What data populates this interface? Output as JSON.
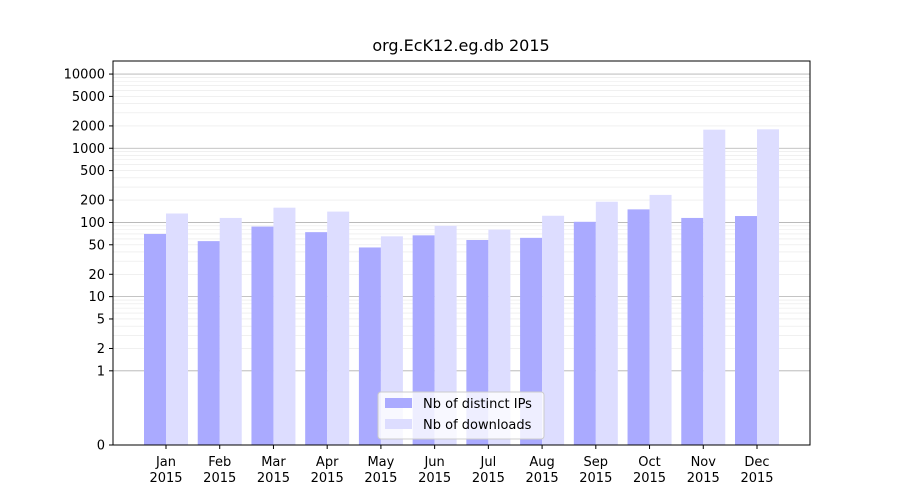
{
  "chart_data": {
    "type": "bar",
    "title": "org.EcK12.eg.db 2015",
    "xlabel": "",
    "ylabel": "",
    "y_scale": "symlog",
    "ylim": [
      0,
      15000
    ],
    "grid": true,
    "legend_position": "bottom-center",
    "categories": [
      [
        "Jan",
        "2015"
      ],
      [
        "Feb",
        "2015"
      ],
      [
        "Mar",
        "2015"
      ],
      [
        "Apr",
        "2015"
      ],
      [
        "May",
        "2015"
      ],
      [
        "Jun",
        "2015"
      ],
      [
        "Jul",
        "2015"
      ],
      [
        "Aug",
        "2015"
      ],
      [
        "Sep",
        "2015"
      ],
      [
        "Oct",
        "2015"
      ],
      [
        "Nov",
        "2015"
      ],
      [
        "Dec",
        "2015"
      ]
    ],
    "y_ticks": [
      {
        "value": 0,
        "label": "0"
      },
      {
        "value": 1,
        "label": "1"
      },
      {
        "value": 2,
        "label": "2"
      },
      {
        "value": 5,
        "label": "5"
      },
      {
        "value": 10,
        "label": "10"
      },
      {
        "value": 20,
        "label": "20"
      },
      {
        "value": 50,
        "label": "50"
      },
      {
        "value": 100,
        "label": "100"
      },
      {
        "value": 200,
        "label": "200"
      },
      {
        "value": 500,
        "label": "500"
      },
      {
        "value": 1000,
        "label": "1000"
      },
      {
        "value": 2000,
        "label": "2000"
      },
      {
        "value": 5000,
        "label": "5000"
      },
      {
        "value": 10000,
        "label": "10000"
      }
    ],
    "series": [
      {
        "name": "Nb of distinct IPs",
        "color": "#aaaaff",
        "values": [
          70,
          56,
          88,
          74,
          46,
          67,
          58,
          62,
          102,
          150,
          115,
          122
        ]
      },
      {
        "name": "Nb of downloads",
        "color": "#ddddff",
        "values": [
          132,
          115,
          158,
          140,
          65,
          90,
          80,
          123,
          190,
          235,
          1780,
          1800
        ]
      }
    ]
  }
}
